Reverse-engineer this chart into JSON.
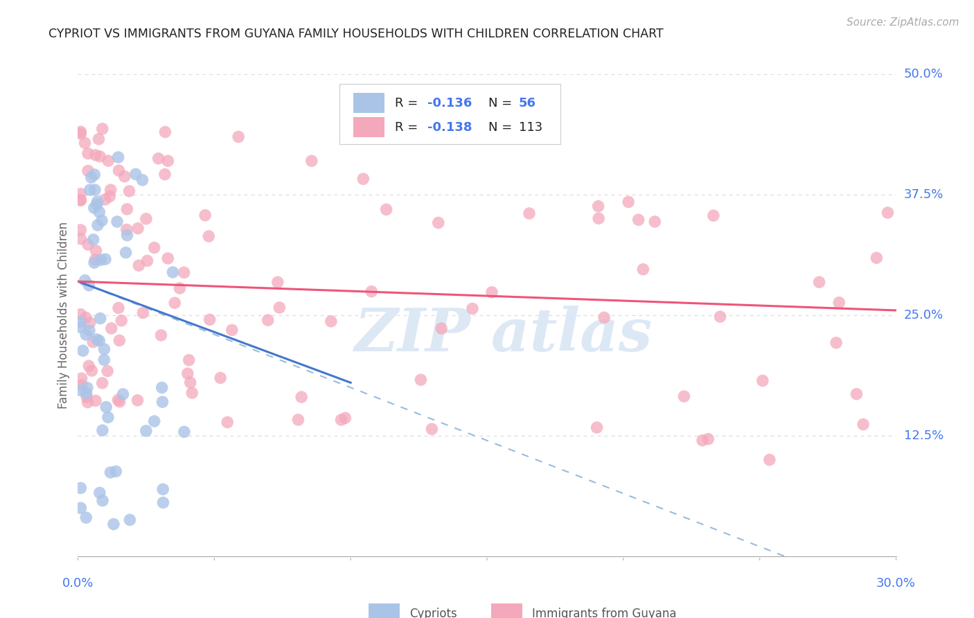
{
  "title": "CYPRIOT VS IMMIGRANTS FROM GUYANA FAMILY HOUSEHOLDS WITH CHILDREN CORRELATION CHART",
  "source": "Source: ZipAtlas.com",
  "ylabel": "Family Households with Children",
  "xmin": 0.0,
  "xmax": 0.3,
  "ymin": 0.0,
  "ymax": 0.5,
  "yticks": [
    0.0,
    0.125,
    0.25,
    0.375,
    0.5
  ],
  "ytick_labels": [
    "",
    "12.5%",
    "25.0%",
    "37.5%",
    "50.0%"
  ],
  "legend_r1": "-0.136",
  "legend_n1": "56",
  "legend_r2": "-0.138",
  "legend_n2": "113",
  "color_blue": "#aac4e8",
  "color_pink": "#f4a8bb",
  "color_line_blue": "#4477cc",
  "color_line_pink": "#ee5577",
  "color_dash": "#99bbdd",
  "color_axis_labels": "#4477ee",
  "color_title": "#222222",
  "color_source": "#aaaaaa",
  "color_watermark": "#dde8f5",
  "background_color": "#ffffff",
  "grid_color": "#dddddd",
  "bottom_border_color": "#aaaaaa"
}
